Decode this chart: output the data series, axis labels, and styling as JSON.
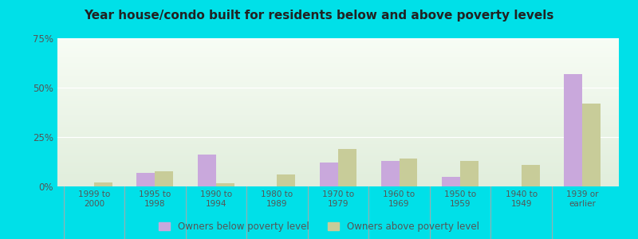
{
  "title": "Year house/condo built for residents below and above poverty levels",
  "categories": [
    "1999 to\n2000",
    "1995 to\n1998",
    "1990 to\n1994",
    "1980 to\n1989",
    "1970 to\n1979",
    "1960 to\n1969",
    "1950 to\n1959",
    "1940 to\n1949",
    "1939 or\nearlier"
  ],
  "below_poverty": [
    0.0,
    7.0,
    16.0,
    0.0,
    12.0,
    13.0,
    5.0,
    0.0,
    57.0
  ],
  "above_poverty": [
    2.0,
    7.5,
    1.5,
    6.0,
    19.0,
    14.0,
    13.0,
    11.0,
    42.0
  ],
  "below_color": "#c9a8dc",
  "above_color": "#c8cc99",
  "ylim": [
    0,
    75
  ],
  "yticks": [
    0,
    25,
    50,
    75
  ],
  "ytick_labels": [
    "0%",
    "25%",
    "50%",
    "75%"
  ],
  "legend_below": "Owners below poverty level",
  "legend_above": "Owners above poverty level",
  "outer_bg": "#00e0e8",
  "title_color": "#222222",
  "bar_width": 0.3
}
